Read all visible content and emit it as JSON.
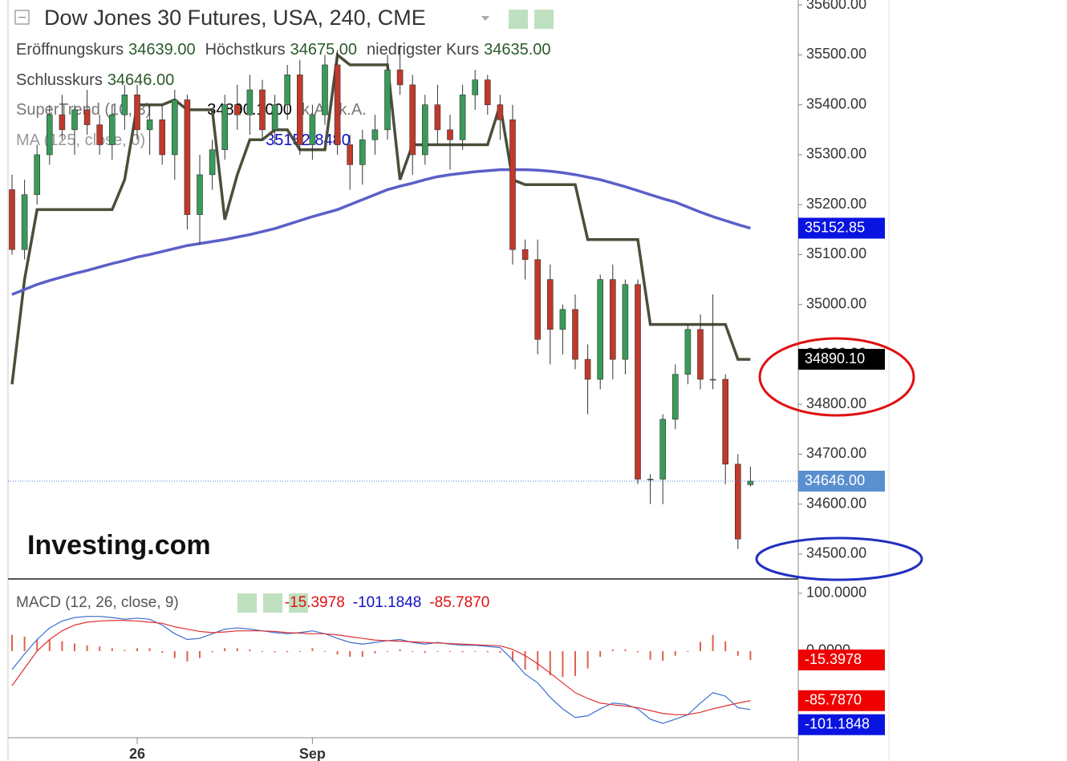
{
  "chart_data": [
    {
      "type": "candlestick",
      "title": "Dow Jones 30 Futures, USA, 240, CME",
      "logo": "Investing.com",
      "ohlc_legend": [
        {
          "name": "Eröffnungskurs",
          "label": "34639.00"
        },
        {
          "name": "Höchstkurs",
          "label": "34675.00"
        },
        {
          "name": "niedrigster Kurs",
          "label": "34635.00"
        },
        {
          "name": "Schlusskurs",
          "label": "34646.00"
        }
      ],
      "last_price_label": "34646.00",
      "up_color": "#3a9a5a",
      "down_color": "#c0392b",
      "categories": [
        null,
        null,
        null,
        null,
        null,
        null,
        null,
        null,
        null,
        null,
        "26",
        null,
        null,
        null,
        null,
        null,
        null,
        null,
        null,
        null,
        null,
        null,
        null,
        null,
        "Sep",
        null,
        null,
        null,
        null,
        null,
        null,
        null,
        null,
        null,
        null,
        null,
        null,
        null,
        null,
        null,
        null,
        null,
        null,
        null,
        null,
        null,
        null,
        null,
        null,
        null,
        null,
        null,
        null,
        null,
        null,
        null,
        null,
        null,
        null,
        null
      ],
      "open": [
        35230,
        35110,
        35220,
        35300,
        35380,
        35350,
        35390,
        35360,
        35320,
        35380,
        35420,
        35350,
        35370,
        35300,
        35410,
        35180,
        35260,
        35310,
        35400,
        35380,
        35430,
        35350,
        35400,
        35460,
        35320,
        35380,
        35480,
        35320,
        35280,
        35330,
        35350,
        35470,
        35440,
        35300,
        35400,
        35350,
        35330,
        35420,
        35450,
        35400,
        35370,
        35110,
        35090,
        35050,
        34950,
        34990,
        34890,
        34850,
        35050,
        34890,
        35040,
        34650,
        34650,
        34770,
        34860,
        34950,
        34850,
        34850,
        34680,
        34639
      ],
      "high": [
        35260,
        35250,
        35320,
        35400,
        35420,
        35400,
        35430,
        35380,
        35400,
        35440,
        35440,
        35400,
        35400,
        35430,
        35420,
        35300,
        35330,
        35420,
        35440,
        35460,
        35450,
        35420,
        35480,
        35490,
        35400,
        35500,
        35510,
        35340,
        35350,
        35380,
        35500,
        35520,
        35460,
        35420,
        35440,
        35380,
        35440,
        35470,
        35460,
        35420,
        35400,
        35130,
        35130,
        35080,
        35000,
        35020,
        34920,
        35060,
        35080,
        35050,
        35050,
        34660,
        34780,
        34880,
        34960,
        34980,
        35020,
        34860,
        34700,
        34675
      ],
      "low": [
        35100,
        35090,
        35200,
        35280,
        35330,
        35300,
        35340,
        35300,
        35290,
        35350,
        35330,
        35300,
        35280,
        35250,
        35150,
        35120,
        35230,
        35290,
        35350,
        35340,
        35330,
        35320,
        35370,
        35300,
        35290,
        35360,
        35300,
        35230,
        35240,
        35300,
        35330,
        35420,
        35260,
        35280,
        35320,
        35270,
        35310,
        35390,
        35380,
        35330,
        35080,
        35050,
        34900,
        34880,
        34900,
        34870,
        34780,
        34830,
        34850,
        34860,
        34640,
        34600,
        34600,
        34750,
        34840,
        34830,
        34830,
        34640,
        34510,
        34635
      ],
      "close": [
        35110,
        35220,
        35300,
        35380,
        35350,
        35390,
        35360,
        35320,
        35380,
        35420,
        35350,
        35370,
        35300,
        35410,
        35180,
        35260,
        35310,
        35400,
        35380,
        35430,
        35350,
        35400,
        35460,
        35320,
        35380,
        35480,
        35320,
        35280,
        35330,
        35350,
        35470,
        35440,
        35300,
        35400,
        35350,
        35330,
        35420,
        35450,
        35400,
        35370,
        35110,
        35090,
        34930,
        34950,
        34990,
        34890,
        34850,
        35050,
        34890,
        35040,
        34650,
        34650,
        34770,
        34860,
        34950,
        34850,
        34850,
        34680,
        34530,
        34646
      ],
      "series": [
        {
          "name": "SuperTrend (10, 3)",
          "color": "#4a4f3a",
          "legend_values": [
            "34890.1000",
            "k.A.",
            "k.A."
          ],
          "tag": "34890.10",
          "tag_color": "#000000",
          "values": [
            34840,
            35050,
            35190,
            35190,
            35190,
            35190,
            35190,
            35190,
            35190,
            35250,
            35400,
            35400,
            35400,
            35410,
            35390,
            35390,
            35390,
            35170,
            35260,
            35330,
            35330,
            35350,
            35350,
            35310,
            35310,
            35310,
            35500,
            35480,
            35480,
            35480,
            35480,
            35250,
            35320,
            35320,
            35320,
            35320,
            35320,
            35320,
            35320,
            35400,
            35250,
            35240,
            35240,
            35240,
            35240,
            35240,
            35130,
            35130,
            35130,
            35130,
            35130,
            34960,
            34960,
            34960,
            34960,
            34960,
            34960,
            34960,
            34890.1,
            34890.1
          ]
        },
        {
          "name": "MA (125, close, 0)",
          "color": "#5b5fc7",
          "legend_values": [
            "35152.8480"
          ],
          "tag": "35152.85",
          "tag_color": "#0a14e0",
          "values": [
            35020,
            35030,
            35040,
            35048,
            35055,
            35062,
            35068,
            35075,
            35082,
            35088,
            35095,
            35100,
            35106,
            35112,
            35118,
            35122,
            35126,
            35130,
            35135,
            35140,
            35146,
            35152,
            35160,
            35168,
            35176,
            35183,
            35190,
            35200,
            35210,
            35220,
            35230,
            35237,
            35243,
            35250,
            35256,
            35260,
            35263,
            35266,
            35268,
            35270,
            35270,
            35270,
            35269,
            35267,
            35264,
            35260,
            35255,
            35250,
            35243,
            35236,
            35228,
            35220,
            35212,
            35205,
            35195,
            35185,
            35176,
            35168,
            35160,
            35152.85
          ]
        }
      ],
      "ylim": [
        34450,
        35610
      ],
      "yticks": [
        {
          "value": 35600,
          "label": "35600.00"
        },
        {
          "value": 35500,
          "label": "35500.00"
        },
        {
          "value": 35400,
          "label": "35400.00"
        },
        {
          "value": 35300,
          "label": "35300.00"
        },
        {
          "value": 35200,
          "label": "35200.00"
        },
        {
          "value": 35100,
          "label": "35100.00"
        },
        {
          "value": 35000,
          "label": "35000.00"
        },
        {
          "value": 34900,
          "label": "34900.00"
        },
        {
          "value": 34800,
          "label": "34800.00"
        },
        {
          "value": 34700,
          "label": "34700.00"
        },
        {
          "value": 34600,
          "label": "34600.00"
        },
        {
          "value": 34500,
          "label": "34500.00"
        }
      ]
    },
    {
      "type": "macd",
      "title": "MACD (12, 26, close, 9)",
      "series": [
        {
          "kind": "bar",
          "color": "#e06050",
          "legend_value": "-15.3978",
          "tag": "-15.3978",
          "tag_color": "#ee0000",
          "values": [
            28,
            25,
            20,
            20,
            17,
            13,
            10,
            8,
            5,
            2,
            5,
            5,
            -3,
            -12,
            -18,
            -12,
            -2,
            5,
            5,
            3,
            0,
            -2,
            -2,
            1,
            5,
            0,
            -6,
            -10,
            -10,
            -4,
            0,
            3,
            -1,
            -3,
            1,
            -1,
            -2,
            -1,
            -2,
            -3,
            -18,
            -32,
            -33,
            -42,
            -45,
            -43,
            -30,
            -10,
            3,
            3,
            -2,
            -15,
            -17,
            -8,
            0,
            16,
            28,
            17,
            -8,
            -15.3978
          ]
        },
        {
          "kind": "line",
          "color": "#3a6fd0",
          "legend_value": "-101.1848",
          "tag": "-101.1848",
          "tag_color": "#0a14e0",
          "values": [
            -32,
            -5,
            20,
            40,
            52,
            58,
            60,
            60,
            58,
            55,
            57,
            55,
            45,
            30,
            20,
            22,
            30,
            38,
            40,
            38,
            35,
            32,
            30,
            32,
            35,
            30,
            22,
            15,
            12,
            15,
            18,
            20,
            15,
            12,
            15,
            12,
            10,
            10,
            8,
            6,
            -15,
            -40,
            -55,
            -80,
            -100,
            -115,
            -112,
            -100,
            -90,
            -92,
            -100,
            -118,
            -125,
            -118,
            -110,
            -90,
            -72,
            -78,
            -98,
            -101.1848
          ]
        },
        {
          "kind": "line",
          "color": "#e03030",
          "legend_value": "-85.7870",
          "tag": "-85.7870",
          "tag_color": "#ee0000",
          "values": [
            -60,
            -30,
            0,
            20,
            35,
            45,
            50,
            52,
            53,
            53,
            52,
            50,
            48,
            42,
            38,
            34,
            32,
            33,
            35,
            35,
            35,
            34,
            32,
            31,
            30,
            30,
            28,
            25,
            22,
            19,
            18,
            17,
            16,
            15,
            14,
            13,
            12,
            11,
            10,
            9,
            3,
            -8,
            -22,
            -38,
            -55,
            -72,
            -82,
            -90,
            -93,
            -95,
            -98,
            -103,
            -108,
            -110,
            -110,
            -106,
            -100,
            -95,
            -90,
            -85.787
          ]
        }
      ],
      "ylim": [
        -150,
        122
      ],
      "yticks": [
        {
          "value": 100,
          "label": "100.0000"
        },
        {
          "value": 0,
          "label": "0.0000"
        }
      ]
    }
  ]
}
